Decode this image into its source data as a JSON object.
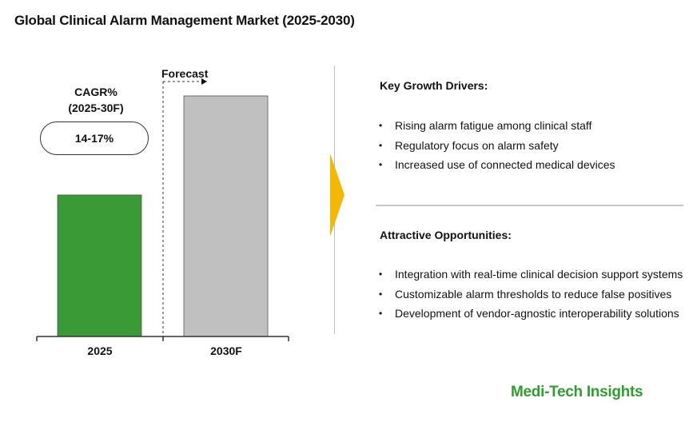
{
  "title": "Global Clinical Alarm Management Market (2025-2030)",
  "chart_data": {
    "type": "bar",
    "categories": [
      "2025",
      "2030F"
    ],
    "values": [
      1.0,
      1.7
    ],
    "value_note": "relative bar heights; no axis values printed",
    "colors": [
      "#3a9a35",
      "#c0c0c0"
    ],
    "cagr_label": "CAGR%\n(2025-30F)",
    "cagr_value": "14-17%",
    "forecast_label": "Forecast",
    "grid": false
  },
  "drivers": {
    "title": "Key Growth Drivers:",
    "items": [
      "Rising alarm fatigue among clinical staff",
      "Regulatory focus on alarm safety",
      "Increased use of connected medical devices"
    ]
  },
  "opportunities": {
    "title": "Attractive Opportunities:",
    "items": [
      "Integration with real-time clinical decision support systems",
      "Customizable alarm thresholds to reduce false positives",
      "Development of vendor-agnostic interoperability solutions"
    ]
  },
  "brand": "Medi-Tech Insights",
  "accent_color": "#f5b800"
}
